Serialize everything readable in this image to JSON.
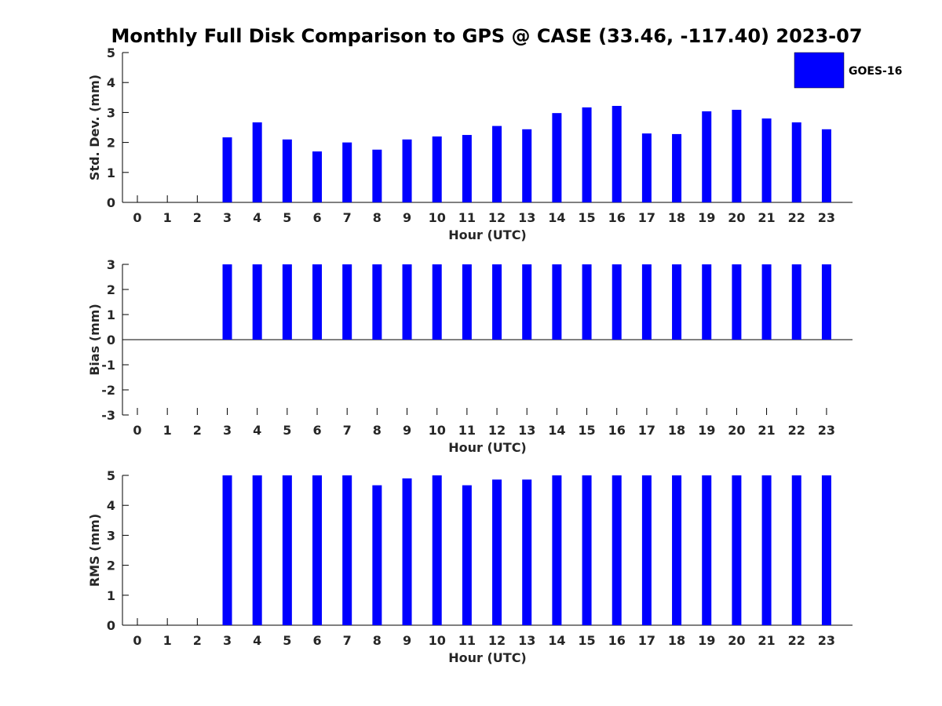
{
  "chart_data": {
    "title": "Monthly Full Disk Comparison to GPS @ CASE (33.46, -117.40) 2023-07",
    "type": "bar",
    "colors": {
      "bar": "#0000ff"
    },
    "legend": {
      "placement": "top-right",
      "entries": [
        {
          "label": "GOES-16",
          "color": "#0000ff"
        }
      ]
    },
    "categories": [
      "0",
      "1",
      "2",
      "3",
      "4",
      "5",
      "6",
      "7",
      "8",
      "9",
      "10",
      "11",
      "12",
      "13",
      "14",
      "15",
      "16",
      "17",
      "18",
      "19",
      "20",
      "21",
      "22",
      "23"
    ],
    "panels": [
      {
        "id": "std",
        "ylabel": "Std. Dev. (mm)",
        "xlabel": "Hour (UTC)",
        "ylim": [
          0,
          5
        ],
        "yticks": [
          "0",
          "1",
          "2",
          "3",
          "4",
          "5"
        ],
        "series": [
          {
            "name": "GOES-16",
            "values": [
              null,
              null,
              null,
              2.17,
              2.67,
              2.1,
              1.7,
              2.0,
              1.76,
              2.1,
              2.2,
              2.25,
              2.55,
              2.44,
              2.98,
              3.17,
              3.22,
              2.3,
              2.28,
              3.04,
              3.09,
              2.8,
              2.67,
              2.44
            ]
          }
        ]
      },
      {
        "id": "bias",
        "ylabel": "Bias (mm)",
        "xlabel": "Hour (UTC)",
        "ylim": [
          -3,
          3
        ],
        "yticks": [
          "-3",
          "-2",
          "-1",
          "0",
          "1",
          "2",
          "3"
        ],
        "series": [
          {
            "name": "GOES-16",
            "values": [
              null,
              null,
              null,
              3,
              3,
              3,
              3,
              3,
              3,
              3,
              3,
              3,
              3,
              3,
              3,
              3,
              3,
              3,
              3,
              3,
              3,
              3,
              3,
              3
            ]
          }
        ]
      },
      {
        "id": "rms",
        "ylabel": "RMS (mm)",
        "xlabel": "Hour (UTC)",
        "ylim": [
          0,
          5
        ],
        "yticks": [
          "0",
          "1",
          "2",
          "3",
          "4",
          "5"
        ],
        "series": [
          {
            "name": "GOES-16",
            "values": [
              null,
              null,
              null,
              5,
              5,
              5,
              5,
              5,
              4.67,
              4.9,
              5,
              4.67,
              4.86,
              4.86,
              5,
              5,
              5,
              5,
              5,
              5,
              5,
              5,
              5,
              5
            ]
          }
        ]
      }
    ]
  }
}
